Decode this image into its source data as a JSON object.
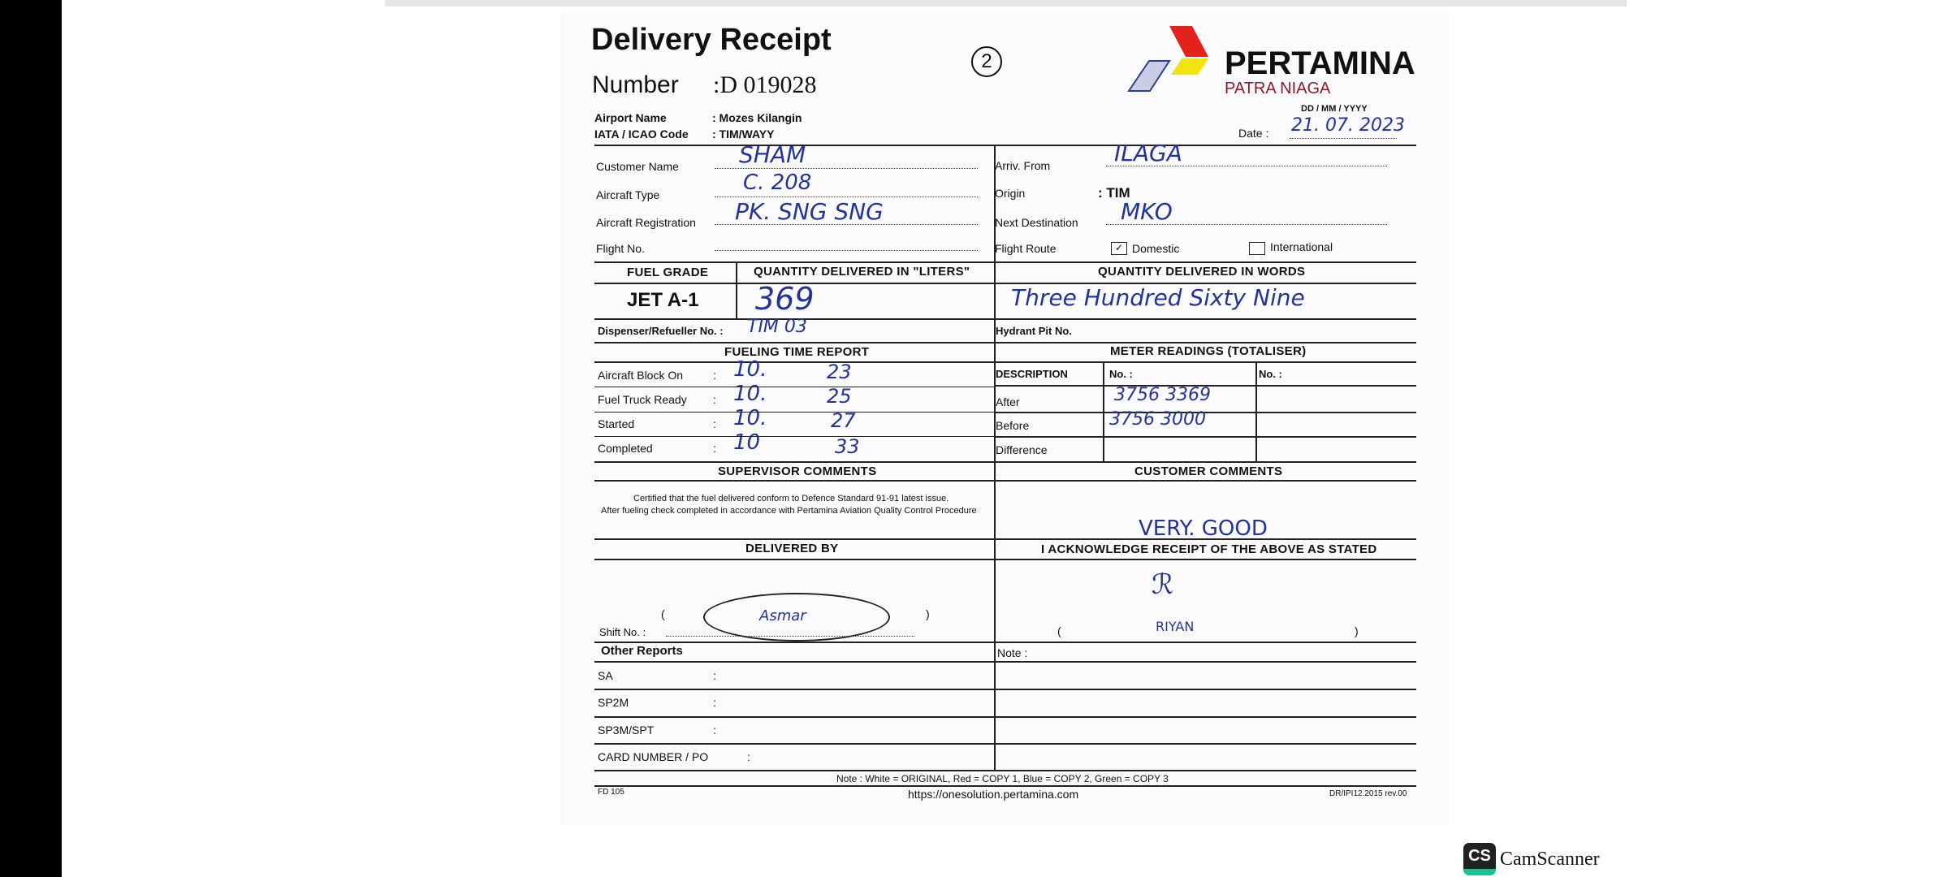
{
  "form": {
    "title": "Delivery Receipt",
    "number_label": "Number",
    "number_value": ":D 019028",
    "copy_mark": "2",
    "brand": {
      "name": "PERTAMINA",
      "sub": "PATRA NIAGA",
      "colors": {
        "red": "#e3231b",
        "yellow": "#f4e312",
        "blue": "#2c3f94",
        "sub": "#8b1a2b"
      }
    },
    "airport_label": "Airport Name",
    "airport_value": ": Mozes Kilangin",
    "iata_label": "IATA / ICAO Code",
    "iata_value": ": TIM/WAYY",
    "date_format": "DD  /  MM  /  YYYY",
    "date_label": "Date  :",
    "date_value": "21. 07. 2023",
    "customer_label": "Customer Name",
    "customer_value": "SHAM",
    "aircraft_type_label": "Aircraft Type",
    "aircraft_type_value": "C. 208",
    "registration_label": "Aircraft  Registration",
    "registration_value": "PK. SNG  SNG",
    "flight_no_label": "Flight No.",
    "arriv_label": "Arriv. From",
    "arriv_value": "ILAGA",
    "origin_label": "Origin",
    "origin_value": ": TIM",
    "next_dest_label": "Next Destination",
    "next_dest_value": "MKO",
    "route_label": "Flight  Route",
    "domestic_label": "Domestic",
    "international_label": "International",
    "domestic_checked": true,
    "fuel_grade_header": "FUEL GRADE",
    "qty_liters_header": "QUANTITY DELIVERED IN \"LITERS\"",
    "qty_words_header": "QUANTITY DELIVERED IN WORDS",
    "fuel_grade": "JET A-1",
    "qty_liters": "369",
    "qty_words": "Three Hundred Sixty Nine",
    "dispenser_label": "Dispenser/Refueller No.  :",
    "dispenser_value": "TIM 03",
    "hydrant_label": "Hydrant Pit No.",
    "time_header": "FUELING TIME REPORT",
    "meter_header": "METER READINGS (TOTALISER)",
    "time_rows": [
      {
        "label": "Aircraft Block On",
        "h": "10.",
        "m": "23"
      },
      {
        "label": "Fuel Truck Ready",
        "h": "10.",
        "m": "25"
      },
      {
        "label": "Started",
        "h": "10.",
        "m": "27"
      },
      {
        "label": "Completed",
        "h": "10",
        "m": "33"
      }
    ],
    "meter_desc_header": "DESCRIPTION",
    "meter_no1": "No. :",
    "meter_no2": "No. :",
    "meter_rows": [
      {
        "label": "After",
        "value": "3756 3369"
      },
      {
        "label": "Before",
        "value": "3756 3000"
      },
      {
        "label": "Difference",
        "value": ""
      }
    ],
    "supervisor_header": "SUPERVISOR  COMMENTS",
    "customer_comments_header": "CUSTOMER  COMMENTS",
    "cert_line1": "Certified that the fuel delivered conform to Defence Standard 91-91 latest issue.",
    "cert_line2": "After fueling check completed in accordance with Pertamina Aviation Quality Control Procedure",
    "customer_comment": "VERY. GOOD",
    "delivered_by_header": "DELIVERED BY",
    "acknowledge_header": "I ACKNOWLEDGE RECEIPT OF THE ABOVE AS STATED",
    "delivered_sign": "Asmar",
    "shift_label": "Shift No.   :",
    "receiver_name": "RIYAN",
    "other_reports": "Other Reports",
    "note_label": "Note :",
    "reports": [
      "SA",
      "SP2M",
      "SP3M/SPT",
      "CARD NUMBER / PO"
    ],
    "copy_note": "Note :   White = ORIGINAL, Red = COPY 1,  Blue = COPY 2,  Green = COPY 3",
    "form_code": "FD 105",
    "url": "https://onesolution.pertamina.com",
    "rev": "DR/IPI12.2015 rev.00"
  },
  "watermark": {
    "icon": "CS",
    "text": "CamScanner",
    "color": "#1fbe93"
  }
}
